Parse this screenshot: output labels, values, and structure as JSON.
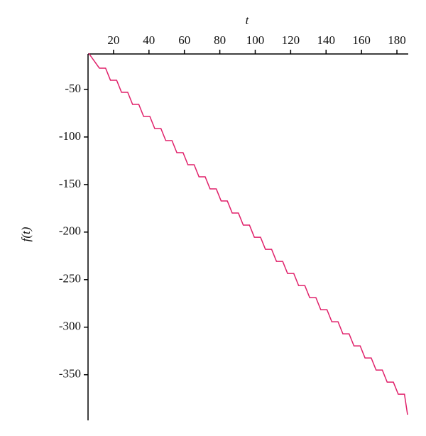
{
  "chart_data": {
    "type": "line",
    "x_label": "t",
    "y_label": "f(t)",
    "x": [
      6,
      12,
      15.5,
      18.25,
      21.75,
      24.5,
      28,
      30.75,
      34.25,
      37,
      40.5,
      43.25,
      46.75,
      49.5,
      53,
      55.75,
      59.25,
      62,
      65.5,
      68.25,
      71.75,
      74.5,
      78,
      80.75,
      84.25,
      87,
      90.5,
      93.25,
      96.75,
      99.5,
      103,
      105.75,
      109.25,
      112,
      115.5,
      118.25,
      121.75,
      124.5,
      128,
      130.75,
      134.25,
      137,
      140.5,
      143.25,
      146.75,
      149.5,
      153,
      155.75,
      159.25,
      162,
      165.5,
      168.25,
      171.75,
      174.5,
      178,
      180.75,
      184.25,
      186
    ],
    "series": [
      {
        "color": "#e0206a",
        "values": [
          -12,
          -27.6,
          -27.6,
          -40.3,
          -40.3,
          -53,
          -53,
          -65.7,
          -65.7,
          -78.4,
          -78.4,
          -91.1,
          -91.1,
          -103.8,
          -103.8,
          -116.5,
          -116.5,
          -129.2,
          -129.2,
          -141.9,
          -141.9,
          -154.6,
          -154.6,
          -167.3,
          -167.3,
          -180,
          -180,
          -192.7,
          -192.7,
          -205.4,
          -205.4,
          -218.1,
          -218.1,
          -230.8,
          -230.8,
          -243.5,
          -243.5,
          -256.2,
          -256.2,
          -268.9,
          -268.9,
          -281.6,
          -281.6,
          -294.3,
          -294.3,
          -307,
          -307,
          -319.7,
          -319.7,
          -332.4,
          -332.4,
          -345.1,
          -345.1,
          -357.8,
          -357.8,
          -370.5,
          -370.5,
          -392
        ]
      }
    ],
    "xlim": [
      5.6,
      186.4
    ],
    "ylim": [
      -398,
      -12.7
    ],
    "xticks": [
      20,
      40,
      60,
      80,
      100,
      120,
      140,
      160,
      180
    ],
    "yticks": [
      -50,
      -100,
      -150,
      -200,
      -250,
      -300,
      -350
    ],
    "x_axis_position": "top"
  }
}
